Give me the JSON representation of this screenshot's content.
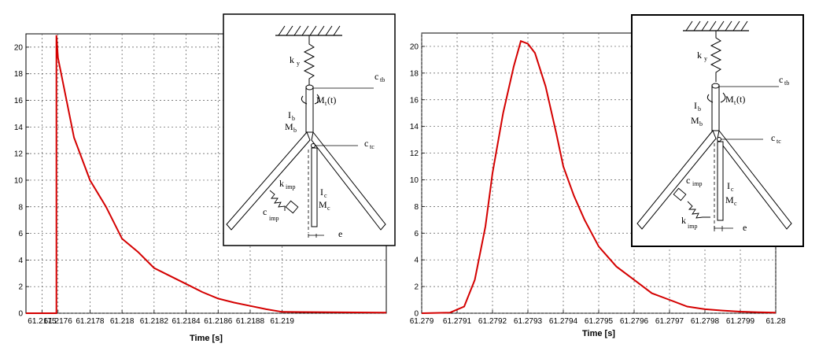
{
  "chart_data": [
    {
      "type": "line",
      "title": "",
      "xlabel": "Time [s]",
      "ylabel": "",
      "grid": true,
      "xlim": [
        61.2174,
        61.21965
      ],
      "ylim": [
        0,
        21
      ],
      "xticks": [
        61.2175,
        61.2176,
        61.2178,
        61.218,
        61.2182,
        61.2184,
        61.2186,
        61.2188,
        61.219
      ],
      "xtick_labels": [
        "61.2175",
        "61.2176",
        "61.2178",
        "61.218",
        "61.2182",
        "61.2184",
        "61.2186",
        "61.2188",
        "61.219"
      ],
      "yticks": [
        0,
        2,
        4,
        6,
        8,
        10,
        12,
        14,
        16,
        18,
        20
      ],
      "ytick_labels": [
        "0",
        "2",
        "4",
        "6",
        "8",
        "10",
        "12",
        "14",
        "16",
        "18",
        "20"
      ],
      "color": "#d40000",
      "series": [
        {
          "x": [
            61.2174,
            61.21759,
            61.21759,
            61.2176,
            61.2177,
            61.2178,
            61.2179,
            61.218,
            61.2181,
            61.2182,
            61.2183,
            61.2184,
            61.2185,
            61.2186,
            61.2187,
            61.2188,
            61.2189,
            61.219,
            61.21965
          ],
          "y": [
            0,
            0,
            20.9,
            19.2,
            13.2,
            10.0,
            8.0,
            5.6,
            4.6,
            3.4,
            2.8,
            2.2,
            1.6,
            1.1,
            0.8,
            0.55,
            0.3,
            0.1,
            0.05
          ]
        }
      ]
    },
    {
      "type": "line",
      "title": "",
      "xlabel": "Time [s]",
      "ylabel": "",
      "grid": true,
      "xlim": [
        61.279,
        61.28
      ],
      "ylim": [
        0,
        21
      ],
      "xticks": [
        61.279,
        61.2791,
        61.2792,
        61.2793,
        61.2794,
        61.2795,
        61.2796,
        61.2797,
        61.2798,
        61.2799,
        61.28
      ],
      "xtick_labels": [
        "61.279",
        "61.2791",
        "61.2792",
        "61.2793",
        "61.2794",
        "61.2795",
        "61.2796",
        "61.2797",
        "61.2798",
        "61.2799",
        "61.28"
      ],
      "yticks": [
        0,
        2,
        4,
        6,
        8,
        10,
        12,
        14,
        16,
        18,
        20
      ],
      "ytick_labels": [
        "0",
        "2",
        "4",
        "6",
        "8",
        "10",
        "12",
        "14",
        "16",
        "18",
        "20"
      ],
      "color": "#d40000",
      "series": [
        {
          "x": [
            61.279,
            61.27908,
            61.27912,
            61.27915,
            61.27918,
            61.2792,
            61.27923,
            61.27926,
            61.27928,
            61.2793,
            61.27932,
            61.27935,
            61.27938,
            61.2794,
            61.27943,
            61.27946,
            61.2795,
            61.27955,
            61.2796,
            61.27965,
            61.2797,
            61.27975,
            61.2798,
            61.27985,
            61.2799,
            61.27995,
            61.28
          ],
          "y": [
            0,
            0.05,
            0.5,
            2.5,
            6.5,
            10.5,
            15.0,
            18.5,
            20.4,
            20.2,
            19.5,
            17.0,
            13.5,
            11.0,
            8.8,
            7.0,
            5.0,
            3.5,
            2.5,
            1.5,
            1.0,
            0.5,
            0.3,
            0.2,
            0.12,
            0.07,
            0.05
          ]
        }
      ]
    }
  ],
  "insets": [
    {
      "spring_label": "k",
      "spring_sub": "y",
      "ctb_label": "c",
      "ctb_sub": "tb",
      "mt_label": "M",
      "mt_sub": "t",
      "mt_tail": "(t)",
      "ib_label": "I",
      "ib_sub": "b",
      "mb_label": "M",
      "mb_sub": "b",
      "ctc_label": "c",
      "ctc_sub": "tc",
      "kimp_label": "k",
      "kimp_sub": "imp",
      "cimp_label": "c",
      "cimp_sub": "imp",
      "ic_label": "I",
      "ic_sub": "c",
      "mc_label": "M",
      "mc_sub": "c",
      "e_label": "e"
    },
    {
      "spring_label": "k",
      "spring_sub": "y",
      "ctb_label": "c",
      "ctb_sub": "tb",
      "mt_label": "M",
      "mt_sub": "t",
      "mt_tail": "(t)",
      "ib_label": "I",
      "ib_sub": "b",
      "mb_label": "M",
      "mb_sub": "b",
      "ctc_label": "c",
      "ctc_sub": "tc",
      "kimp_label": "k",
      "kimp_sub": "imp",
      "cimp_label": "c",
      "cimp_sub": "imp",
      "ic_label": "I",
      "ic_sub": "c",
      "mc_label": "M",
      "mc_sub": "c",
      "e_label": "e"
    }
  ]
}
